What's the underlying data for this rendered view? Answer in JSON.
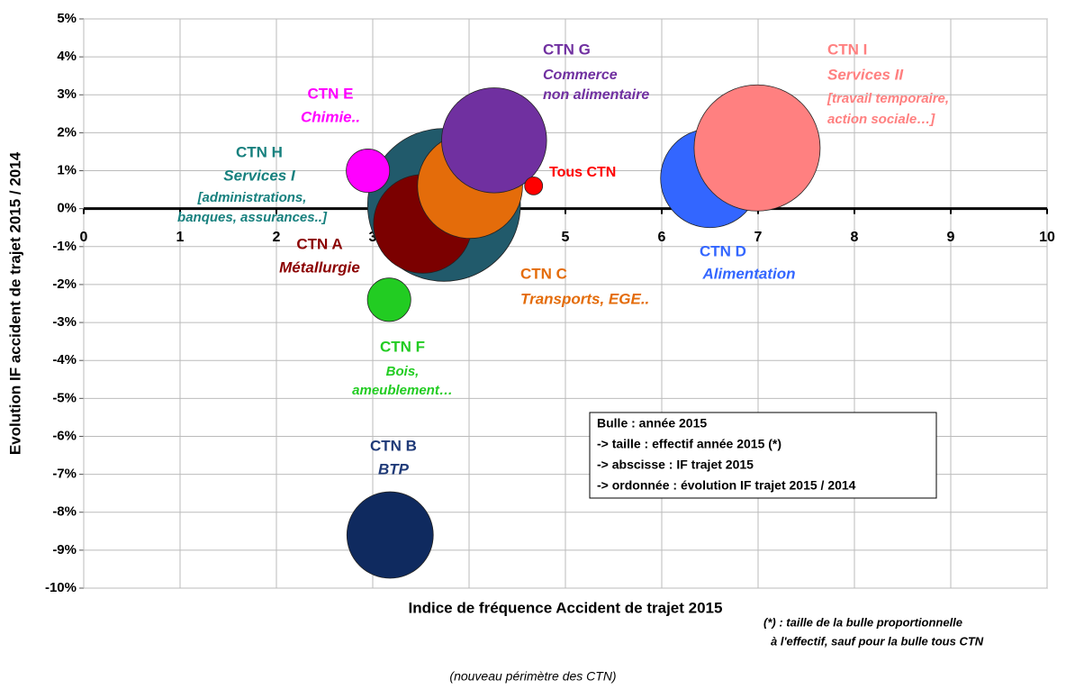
{
  "chart_data": {
    "type": "bubble",
    "xlabel": "Indice de fréquence Accident de trajet 2015",
    "ylabel": "Evolution IF accident de trajet 2015 / 2014",
    "xlim": [
      0,
      10
    ],
    "ylim": [
      -10,
      5
    ],
    "xticks": [
      0,
      1,
      2,
      3,
      4,
      5,
      6,
      7,
      8,
      9,
      10
    ],
    "yticks": [
      {
        "value": -10,
        "label": "-10%"
      },
      {
        "value": -9,
        "label": "-9%"
      },
      {
        "value": -8,
        "label": "-8%"
      },
      {
        "value": -7,
        "label": "-7%"
      },
      {
        "value": -6,
        "label": "-6%"
      },
      {
        "value": -5,
        "label": "-5%"
      },
      {
        "value": -4,
        "label": "-4%"
      },
      {
        "value": -3,
        "label": "-3%"
      },
      {
        "value": -2,
        "label": "-2%"
      },
      {
        "value": -1,
        "label": "-1%"
      },
      {
        "value": 0,
        "label": "0%"
      },
      {
        "value": 1,
        "label": "1%"
      },
      {
        "value": 2,
        "label": "2%"
      },
      {
        "value": 3,
        "label": "3%"
      },
      {
        "value": 4,
        "label": "4%"
      },
      {
        "value": 5,
        "label": "5%"
      }
    ],
    "grid": true,
    "series": [
      {
        "name": "CTN H",
        "color": "#215a6b",
        "label_color": "#17807e",
        "x": [
          3.74
        ],
        "values": [
          0.1
        ],
        "sizes": [
          72
        ],
        "details": [
          "Services I",
          "[administrations,",
          "banques, assurances..]"
        ]
      },
      {
        "name": "CTN A",
        "color": "#7b0000",
        "label_color": "#8b0000",
        "x": [
          3.52
        ],
        "values": [
          -0.4
        ],
        "sizes": [
          30
        ],
        "details": [
          "Métallurgie"
        ]
      },
      {
        "name": "CTN C",
        "color": "#e46c0a",
        "label_color": "#e46c0a",
        "x": [
          4.01
        ],
        "values": [
          0.6
        ],
        "sizes": [
          34
        ],
        "details": [
          "Transports, EGE.."
        ]
      },
      {
        "name": "CTN G",
        "color": "#7030a0",
        "label_color": "#7030a0",
        "x": [
          4.26
        ],
        "values": [
          1.8
        ],
        "sizes": [
          34
        ],
        "details": [
          "Commerce",
          "non alimentaire"
        ]
      },
      {
        "name": "CTN E",
        "color": "#ff00ff",
        "label_color": "#ff00ff",
        "x": [
          2.95
        ],
        "values": [
          1.0
        ],
        "sizes": [
          5.8
        ],
        "details": [
          "Chimie.."
        ]
      },
      {
        "name": "Tous CTN",
        "color": "#ff0000",
        "label_color": "#ff0000",
        "x": [
          4.67
        ],
        "values": [
          0.6
        ],
        "sizes": [
          1
        ],
        "details": []
      },
      {
        "name": "CTN F",
        "color": "#22cc22",
        "label_color": "#22cc22",
        "x": [
          3.17
        ],
        "values": [
          -2.4
        ],
        "sizes": [
          5.8
        ],
        "details": [
          "Bois,",
          "ameublement…"
        ]
      },
      {
        "name": "CTN B",
        "color": "#0f2a5f",
        "label_color": "#1f3a78",
        "x": [
          3.18
        ],
        "values": [
          -8.6
        ],
        "sizes": [
          23
        ],
        "details": [
          "BTP"
        ]
      },
      {
        "name": "CTN D",
        "color": "#3366ff",
        "label_color": "#3366ff",
        "x": [
          6.5
        ],
        "values": [
          0.8
        ],
        "sizes": [
          30
        ],
        "details": [
          "Alimentation"
        ]
      },
      {
        "name": "CTN I",
        "color": "#ff8080",
        "label_color": "#ff8080",
        "x": [
          6.99
        ],
        "values": [
          1.6
        ],
        "sizes": [
          49
        ],
        "details": [
          "Services II",
          "[travail temporaire,",
          "action sociale…]"
        ]
      }
    ],
    "legend_box": [
      "Bulle : année 2015",
      "-> taille : effectif année 2015 (*)",
      "-> abscisse : IF trajet 2015",
      "-> ordonnée : évolution IF trajet 2015 / 2014"
    ],
    "footnote": [
      "(*) : taille de la bulle proportionnelle",
      " à l'effectif, sauf pour la bulle tous CTN"
    ],
    "caption": "(nouveau périmètre des CTN)"
  }
}
